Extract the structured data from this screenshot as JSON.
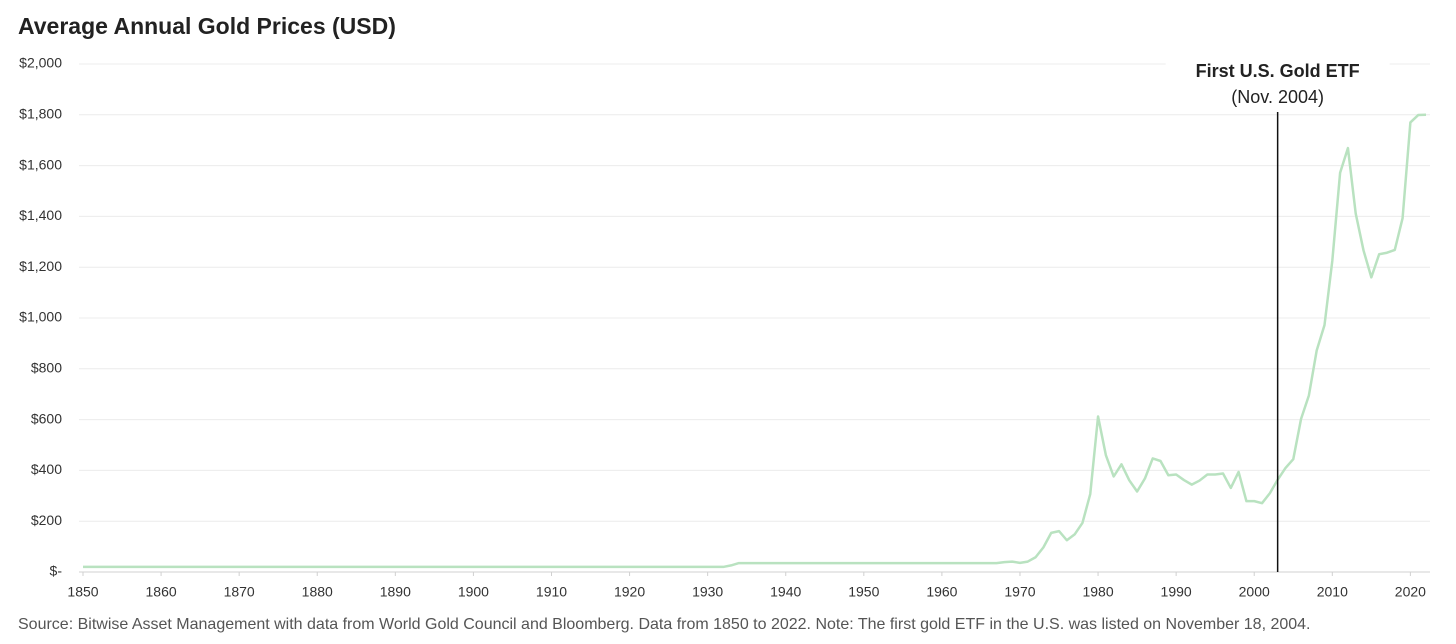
{
  "chart_data": {
    "type": "line",
    "title": "Average Annual Gold Prices (USD)",
    "source": "Source: Bitwise Asset Management with data from World Gold Council and Bloomberg. Data from 1850 to 2022. Note: The first gold ETF in the U.S. was listed on November 18, 2004.",
    "color": "#b9e2c0",
    "grid": true,
    "x": [
      1850,
      1851,
      1852,
      1853,
      1854,
      1855,
      1856,
      1857,
      1858,
      1859,
      1860,
      1861,
      1862,
      1863,
      1864,
      1865,
      1866,
      1867,
      1868,
      1869,
      1870,
      1871,
      1872,
      1873,
      1874,
      1875,
      1876,
      1877,
      1878,
      1879,
      1880,
      1881,
      1882,
      1883,
      1884,
      1885,
      1886,
      1887,
      1888,
      1889,
      1890,
      1891,
      1892,
      1893,
      1894,
      1895,
      1896,
      1897,
      1898,
      1899,
      1900,
      1901,
      1902,
      1903,
      1904,
      1905,
      1906,
      1907,
      1908,
      1909,
      1910,
      1911,
      1912,
      1913,
      1914,
      1915,
      1916,
      1917,
      1918,
      1919,
      1920,
      1921,
      1922,
      1923,
      1924,
      1925,
      1926,
      1927,
      1928,
      1929,
      1930,
      1931,
      1932,
      1933,
      1934,
      1935,
      1936,
      1937,
      1938,
      1939,
      1940,
      1941,
      1942,
      1943,
      1944,
      1945,
      1946,
      1947,
      1948,
      1949,
      1950,
      1951,
      1952,
      1953,
      1954,
      1955,
      1956,
      1957,
      1958,
      1959,
      1960,
      1961,
      1962,
      1963,
      1964,
      1965,
      1966,
      1967,
      1968,
      1969,
      1970,
      1971,
      1972,
      1973,
      1974,
      1975,
      1976,
      1977,
      1978,
      1979,
      1980,
      1981,
      1982,
      1983,
      1984,
      1985,
      1986,
      1987,
      1988,
      1989,
      1990,
      1991,
      1992,
      1993,
      1994,
      1995,
      1996,
      1997,
      1998,
      1999,
      2000,
      2001,
      2002,
      2003,
      2004,
      2005,
      2006,
      2007,
      2008,
      2009,
      2010,
      2011,
      2012,
      2013,
      2014,
      2015,
      2016,
      2017,
      2018,
      2019,
      2020,
      2021,
      2022
    ],
    "values": [
      20,
      20,
      20,
      20,
      20,
      20,
      20,
      20,
      20,
      20,
      20,
      20,
      20,
      20,
      20,
      20,
      20,
      20,
      20,
      20,
      20,
      20,
      20,
      20,
      20,
      20,
      20,
      20,
      20,
      20,
      20,
      20,
      20,
      20,
      20,
      20,
      20,
      20,
      20,
      20,
      20,
      20,
      20,
      20,
      20,
      20,
      20,
      20,
      20,
      20,
      20,
      20,
      20,
      20,
      20,
      20,
      20,
      20,
      20,
      20,
      20,
      20,
      20,
      20,
      20,
      20,
      20,
      20,
      20,
      20,
      20,
      20,
      20,
      20,
      20,
      20,
      20,
      20,
      20,
      20,
      20,
      20,
      20,
      26,
      35,
      35,
      35,
      35,
      35,
      35,
      35,
      35,
      35,
      35,
      35,
      35,
      35,
      35,
      35,
      35,
      35,
      35,
      35,
      35,
      35,
      35,
      35,
      35,
      35,
      35,
      35,
      35,
      35,
      35,
      35,
      35,
      35,
      35,
      39,
      41,
      36,
      41,
      58,
      97,
      154,
      161,
      125,
      148,
      193,
      307,
      612,
      460,
      376,
      424,
      361,
      317,
      368,
      447,
      437,
      381,
      384,
      362,
      344,
      360,
      384,
      384,
      388,
      331,
      394,
      279,
      279,
      271,
      310,
      363,
      409,
      444,
      603,
      695,
      872,
      972,
      1225,
      1572,
      1669,
      1411,
      1266,
      1160,
      1251,
      1257,
      1268,
      1393,
      1770,
      1799,
      1800
    ],
    "xlim": [
      1850,
      2022
    ],
    "xticks": [
      1850,
      1860,
      1870,
      1880,
      1890,
      1900,
      1910,
      1920,
      1930,
      1940,
      1950,
      1960,
      1970,
      1980,
      1990,
      2000,
      2010,
      2020
    ],
    "ylim": [
      0,
      2000
    ],
    "yticks": [
      {
        "value": 0,
        "label": "$-"
      },
      {
        "value": 200,
        "label": "$200"
      },
      {
        "value": 400,
        "label": "$400"
      },
      {
        "value": 600,
        "label": "$600"
      },
      {
        "value": 800,
        "label": "$800"
      },
      {
        "value": 1000,
        "label": "$1,000"
      },
      {
        "value": 1200,
        "label": "$1,200"
      },
      {
        "value": 1400,
        "label": "$1,400"
      },
      {
        "value": 1600,
        "label": "$1,600"
      },
      {
        "value": 1800,
        "label": "$1,800"
      },
      {
        "value": 2000,
        "label": "$2,000"
      }
    ],
    "annotation": {
      "x": 2003,
      "title": "First U.S. Gold ETF",
      "subtitle": "(Nov. 2004)"
    }
  }
}
